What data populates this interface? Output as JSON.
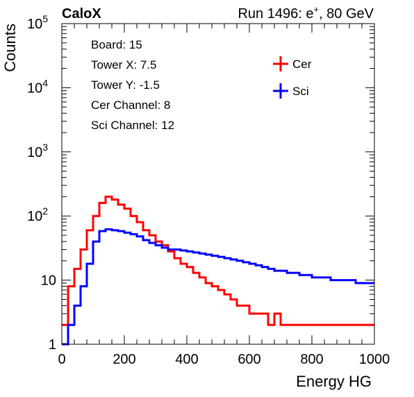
{
  "chart_data": {
    "type": "line",
    "title_left": "CaloX",
    "title_right": "Run 1496: e+, 80 GeV",
    "xlabel": "Energy HG",
    "ylabel": "Counts",
    "xlim": [
      0,
      1000
    ],
    "ylim": [
      1,
      100000
    ],
    "yscale": "log",
    "grid": false,
    "xticks": [
      {
        "value": 0,
        "label": "0"
      },
      {
        "value": 200,
        "label": "200"
      },
      {
        "value": 400,
        "label": "400"
      },
      {
        "value": 600,
        "label": "600"
      },
      {
        "value": 800,
        "label": "800"
      },
      {
        "value": 1000,
        "label": "1000"
      }
    ],
    "yticks": [
      {
        "value": 1,
        "label": "1"
      },
      {
        "value": 10,
        "label": "10"
      },
      {
        "value": 100,
        "base": "10",
        "exp": "2"
      },
      {
        "value": 1000,
        "base": "10",
        "exp": "3"
      },
      {
        "value": 10000,
        "base": "10",
        "exp": "4"
      },
      {
        "value": 100000,
        "base": "10",
        "exp": "5"
      }
    ],
    "info": [
      "Board: 15",
      "Tower X: 7.5",
      "Tower Y: -1.5",
      "Cer Channel: 8",
      "Sci Channel: 12"
    ],
    "legend_position": "top-right",
    "series": [
      {
        "name": "Cer",
        "color": "#ff0000",
        "x": [
          0,
          20,
          40,
          60,
          80,
          100,
          120,
          140,
          160,
          180,
          200,
          220,
          240,
          260,
          280,
          300,
          320,
          340,
          360,
          380,
          400,
          420,
          440,
          460,
          480,
          500,
          520,
          540,
          560,
          580,
          600,
          620,
          640,
          660,
          680,
          700,
          720,
          740,
          760,
          780,
          800,
          820,
          840,
          860,
          880,
          900,
          920,
          940,
          960,
          980,
          1000
        ],
        "y": [
          2,
          8,
          15,
          30,
          60,
          100,
          160,
          200,
          180,
          150,
          130,
          100,
          80,
          60,
          50,
          40,
          35,
          28,
          22,
          18,
          16,
          13,
          11,
          9,
          8,
          7,
          6,
          5,
          4,
          4,
          3,
          3,
          3,
          2,
          3,
          2,
          2,
          2,
          2,
          2,
          2,
          2,
          2,
          2,
          2,
          2,
          2,
          2,
          2,
          2,
          2
        ]
      },
      {
        "name": "Sci",
        "color": "#0000ff",
        "x": [
          0,
          20,
          40,
          60,
          80,
          100,
          120,
          140,
          160,
          180,
          200,
          220,
          240,
          260,
          280,
          300,
          320,
          340,
          360,
          380,
          400,
          420,
          440,
          460,
          480,
          500,
          520,
          540,
          560,
          580,
          600,
          620,
          640,
          660,
          680,
          700,
          720,
          740,
          760,
          780,
          800,
          820,
          840,
          860,
          880,
          900,
          920,
          940,
          960,
          980,
          1000
        ],
        "y": [
          1,
          2,
          4,
          8,
          18,
          40,
          58,
          62,
          60,
          58,
          55,
          52,
          48,
          42,
          38,
          35,
          32,
          30,
          30,
          29,
          28,
          27,
          26,
          25,
          24,
          23,
          22,
          21,
          20,
          19,
          18,
          17,
          16,
          15,
          14,
          14,
          13,
          13,
          12,
          12,
          11,
          11,
          11,
          10,
          10,
          10,
          10,
          9,
          9,
          9,
          9
        ]
      }
    ]
  }
}
